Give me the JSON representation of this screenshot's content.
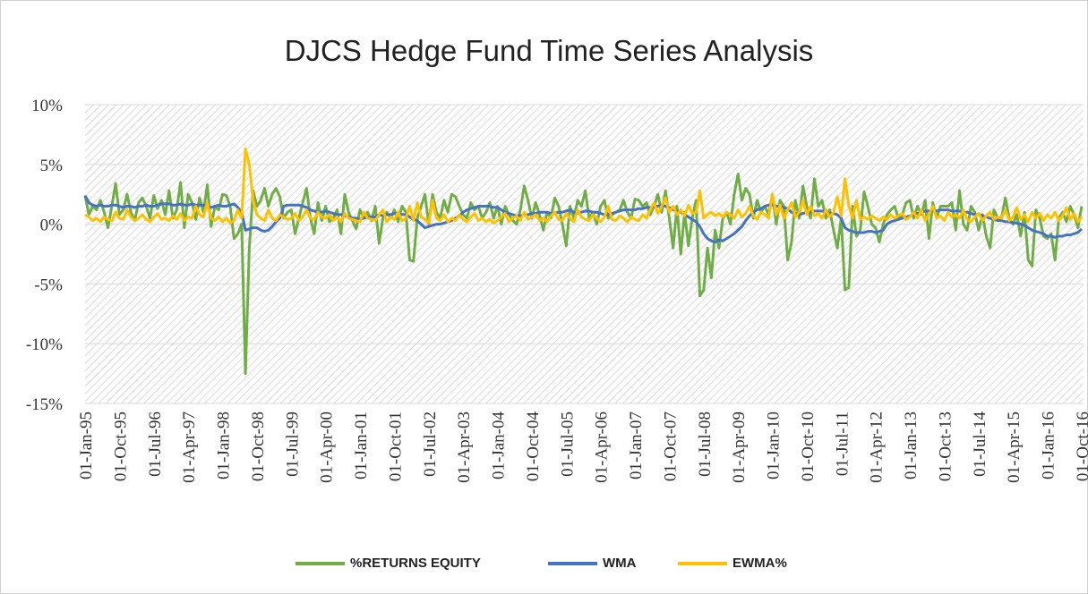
{
  "chart_data": {
    "type": "line",
    "title": "DJCS Hedge Fund Time Series Analysis",
    "categories": [
      "01-Jan-95",
      null,
      null,
      null,
      null,
      null,
      null,
      null,
      null,
      "01-Oct-95",
      null,
      null,
      null,
      null,
      null,
      null,
      null,
      null,
      "01-Jul-96",
      null,
      null,
      null,
      null,
      null,
      null,
      null,
      null,
      "01-Apr-97",
      null,
      null,
      null,
      null,
      null,
      null,
      null,
      null,
      "01-Jan-98",
      null,
      null,
      null,
      null,
      null,
      null,
      null,
      null,
      "01-Oct-98",
      null,
      null,
      null,
      null,
      null,
      null,
      null,
      null,
      "01-Jul-99",
      null,
      null,
      null,
      null,
      null,
      null,
      null,
      null,
      "01-Apr-00",
      null,
      null,
      null,
      null,
      null,
      null,
      null,
      null,
      "01-Jan-01",
      null,
      null,
      null,
      null,
      null,
      null,
      null,
      null,
      "01-Oct-01",
      null,
      null,
      null,
      null,
      null,
      null,
      null,
      null,
      "01-Jul-02",
      null,
      null,
      null,
      null,
      null,
      null,
      null,
      null,
      "01-Apr-03",
      null,
      null,
      null,
      null,
      null,
      null,
      null,
      null,
      "01-Jan-04",
      null,
      null,
      null,
      null,
      null,
      null,
      null,
      null,
      "01-Oct-04",
      null,
      null,
      null,
      null,
      null,
      null,
      null,
      null,
      "01-Jul-05",
      null,
      null,
      null,
      null,
      null,
      null,
      null,
      null,
      "01-Apr-06",
      null,
      null,
      null,
      null,
      null,
      null,
      null,
      null,
      "01-Jan-07",
      null,
      null,
      null,
      null,
      null,
      null,
      null,
      null,
      "01-Oct-07",
      null,
      null,
      null,
      null,
      null,
      null,
      null,
      null,
      "01-Jul-08",
      null,
      null,
      null,
      null,
      null,
      null,
      null,
      null,
      "01-Apr-09",
      null,
      null,
      null,
      null,
      null,
      null,
      null,
      null,
      "01-Jan-10",
      null,
      null,
      null,
      null,
      null,
      null,
      null,
      null,
      "01-Oct-10",
      null,
      null,
      null,
      null,
      null,
      null,
      null,
      null,
      "01-Jul-11",
      null,
      null,
      null,
      null,
      null,
      null,
      null,
      null,
      "01-Apr-12",
      null,
      null,
      null,
      null,
      null,
      null,
      null,
      null,
      "01-Jan-13",
      null,
      null,
      null,
      null,
      null,
      null,
      null,
      null,
      "01-Oct-13",
      null,
      null,
      null,
      null,
      null,
      null,
      null,
      null,
      "01-Jul-14",
      null,
      null,
      null,
      null,
      null,
      null,
      null,
      null,
      "01-Apr-15",
      null,
      null,
      null,
      null,
      null,
      null,
      null,
      null,
      "01-Jan-16",
      null,
      null,
      null,
      null,
      null,
      null,
      null,
      null,
      "01-Oct-16"
    ],
    "series": [
      {
        "name": "%RETURNS EQUITY",
        "color": "#70ad47",
        "values": [
          2.4,
          0.8,
          1.5,
          1.2,
          2.0,
          1.0,
          -0.3,
          1.5,
          3.4,
          0.8,
          1.2,
          2.5,
          1.0,
          0.3,
          1.8,
          2.2,
          1.5,
          0.5,
          2.4,
          1.3,
          2.0,
          0.8,
          2.8,
          0.5,
          1.2,
          3.5,
          -0.3,
          2.5,
          1.8,
          0.4,
          2.2,
          1.0,
          3.3,
          -0.2,
          1.5,
          1.2,
          2.5,
          2.4,
          1.5,
          -1.2,
          -0.8,
          0.0,
          -12.5,
          -2.0,
          2.8,
          1.5,
          2.0,
          3.0,
          1.5,
          2.5,
          3.0,
          2.3,
          0.5,
          1.0,
          1.2,
          -0.8,
          0.5,
          1.8,
          3.0,
          0.5,
          -0.8,
          1.8,
          0.3,
          1.5,
          0.2,
          0.5,
          1.2,
          -0.8,
          2.5,
          1.0,
          0.3,
          -0.4,
          1.2,
          0.5,
          1.0,
          0.3,
          1.5,
          -1.6,
          0.5,
          1.0,
          0.5,
          1.2,
          0.2,
          1.5,
          1.0,
          -3.0,
          -3.1,
          0.5,
          1.5,
          2.5,
          0.0,
          2.5,
          1.0,
          0.5,
          2.0,
          1.0,
          2.5,
          2.3,
          1.5,
          0.8,
          0.5,
          1.8,
          1.2,
          1.5,
          0.5,
          1.0,
          1.8,
          0.5,
          1.5,
          0.0,
          1.5,
          0.8,
          0.3,
          0.0,
          1.2,
          3.2,
          2.0,
          0.5,
          1.8,
          0.8,
          -0.5,
          1.0,
          0.5,
          2.2,
          1.5,
          0.0,
          -1.8,
          1.5,
          0.5,
          2.0,
          1.5,
          2.8,
          0.5,
          1.0,
          0.0,
          1.5,
          2.0,
          0.5,
          0.8,
          1.0,
          1.2,
          2.0,
          1.0,
          0.5,
          2.1,
          2.0,
          1.5,
          1.8,
          0.8,
          1.5,
          2.5,
          1.0,
          2.8,
          0.5,
          -2.0,
          1.5,
          -2.5,
          1.0,
          -1.8,
          0.5,
          2.0,
          -6.0,
          -5.5,
          -2.0,
          -4.5,
          -0.5,
          -2.0,
          0.5,
          1.0,
          0.0,
          2.5,
          4.2,
          2.0,
          3.0,
          2.5,
          0.5,
          2.0,
          1.0,
          1.5,
          0.8,
          2.5,
          0.0,
          2.0,
          1.5,
          -3.0,
          -1.5,
          2.0,
          0.5,
          3.2,
          1.5,
          0.5,
          3.8,
          1.5,
          2.0,
          0.5,
          1.2,
          -0.5,
          -2.0,
          0.5,
          -5.5,
          -5.3,
          1.5,
          -1.0,
          -0.5,
          2.7,
          1.5,
          0.0,
          -0.3,
          -1.5,
          0.0,
          0.8,
          1.2,
          1.5,
          0.5,
          0.8,
          1.8,
          2.0,
          0.5,
          1.5,
          0.8,
          2.0,
          -1.2,
          1.8,
          0.5,
          1.5,
          1.5,
          1.5,
          1.8,
          -0.5,
          2.8,
          0.0,
          -0.5,
          1.5,
          1.0,
          -0.5,
          0.8,
          -1.0,
          -2.0,
          1.2,
          0.5,
          0.5,
          2.2,
          0.5,
          0.0,
          0.8,
          -1.0,
          1.0,
          -3.0,
          -3.5,
          1.2,
          0.5,
          -1.0,
          -1.2,
          -0.8,
          -3.0,
          0.5,
          1.0,
          0.2,
          1.5,
          0.8,
          -0.3,
          1.5
        ]
      },
      {
        "name": "WMA",
        "color": "#4472c4",
        "values": [
          2.4,
          1.8,
          1.6,
          1.5,
          1.6,
          1.5,
          1.5,
          1.6,
          1.6,
          1.5,
          1.4,
          1.5,
          1.5,
          1.4,
          1.5,
          1.5,
          1.6,
          1.5,
          1.5,
          1.6,
          1.7,
          1.7,
          1.7,
          1.6,
          1.6,
          1.7,
          1.6,
          1.6,
          1.7,
          1.6,
          1.6,
          1.6,
          1.5,
          1.4,
          1.5,
          1.6,
          1.5,
          1.5,
          1.6,
          1.7,
          1.4,
          1.0,
          -0.5,
          -0.4,
          -0.3,
          -0.3,
          -0.5,
          -0.6,
          -0.5,
          -0.2,
          0.2,
          0.5,
          1.5,
          1.6,
          1.6,
          1.6,
          1.6,
          1.5,
          1.4,
          1.2,
          1.1,
          1.0,
          1.0,
          1.1,
          1.0,
          0.9,
          0.8,
          0.8,
          0.7,
          0.6,
          0.5,
          0.5,
          0.4,
          0.5,
          0.6,
          0.6,
          0.6,
          0.8,
          0.7,
          0.8,
          0.8,
          0.9,
          0.9,
          0.8,
          0.8,
          0.6,
          0.4,
          0.3,
          0.0,
          -0.3,
          -0.2,
          -0.1,
          0.0,
          0.0,
          0.1,
          0.2,
          0.3,
          0.5,
          0.7,
          1.0,
          1.2,
          1.3,
          1.4,
          1.5,
          1.5,
          1.5,
          1.5,
          1.4,
          1.4,
          1.2,
          1.0,
          0.9,
          0.8,
          0.7,
          0.7,
          0.8,
          0.8,
          0.9,
          0.9,
          1.0,
          1.0,
          1.0,
          0.9,
          0.9,
          1.0,
          1.0,
          1.1,
          1.2,
          1.0,
          0.9,
          1.0,
          1.1,
          1.1,
          1.0,
          1.0,
          0.9,
          0.8,
          0.8,
          0.9,
          1.0,
          1.1,
          1.2,
          1.2,
          1.2,
          1.2,
          1.3,
          1.3,
          1.4,
          1.4,
          1.5,
          1.5,
          1.6,
          1.5,
          1.4,
          1.2,
          1.1,
          1.0,
          0.8,
          0.6,
          0.4,
          0.2,
          -0.2,
          -0.8,
          -1.2,
          -1.4,
          -1.5,
          -1.3,
          -1.4,
          -1.2,
          -1.0,
          -0.8,
          -0.5,
          -0.2,
          0.3,
          0.7,
          1.0,
          1.2,
          1.3,
          1.5,
          1.6,
          1.6,
          1.5,
          1.5,
          1.4,
          1.3,
          1.0,
          0.9,
          0.8,
          0.9,
          1.0,
          1.0,
          1.1,
          1.1,
          1.1,
          1.0,
          0.9,
          0.9,
          0.8,
          0.5,
          -0.3,
          -0.5,
          -0.6,
          -0.7,
          -0.7,
          -0.7,
          -0.6,
          -0.6,
          -0.7,
          -0.6,
          -0.5,
          0.0,
          0.2,
          0.3,
          0.4,
          0.5,
          0.6,
          0.7,
          0.8,
          0.9,
          1.0,
          1.1,
          1.1,
          1.1,
          1.1,
          1.2,
          1.2,
          1.2,
          1.1,
          1.1,
          1.1,
          1.0,
          1.0,
          0.9,
          0.8,
          0.8,
          0.7,
          0.6,
          0.5,
          0.4,
          0.3,
          0.3,
          0.2,
          0.2,
          0.1,
          0.1,
          0.0,
          -0.1,
          -0.3,
          -0.5,
          -0.6,
          -0.7,
          -0.8,
          -1.0,
          -1.0,
          -1.1,
          -1.0,
          -1.0,
          -0.9,
          -0.9,
          -0.8,
          -0.7,
          -0.4
        ]
      },
      {
        "name": "EWMA%",
        "color": "#ffc000",
        "values": [
          0.8,
          0.6,
          0.3,
          0.5,
          0.2,
          0.6,
          0.4,
          0.3,
          1.0,
          0.5,
          0.4,
          1.2,
          0.6,
          0.3,
          0.5,
          0.8,
          0.4,
          0.2,
          0.6,
          0.9,
          0.4,
          0.5,
          0.3,
          0.7,
          0.4,
          0.9,
          0.3,
          0.6,
          0.5,
          1.5,
          0.8,
          0.6,
          1.8,
          0.5,
          0.3,
          0.6,
          0.2,
          0.5,
          0.1,
          0.3,
          1.2,
          0.5,
          6.3,
          5.0,
          2.0,
          0.8,
          0.5,
          0.3,
          1.2,
          0.5,
          0.3,
          0.8,
          0.6,
          0.4,
          0.5,
          0.9,
          0.3,
          0.6,
          1.2,
          0.5,
          0.4,
          1.0,
          0.6,
          0.5,
          0.8,
          0.3,
          0.6,
          0.2,
          0.9,
          0.5,
          0.4,
          0.3,
          0.2,
          1.0,
          0.5,
          0.4,
          0.3,
          0.8,
          1.2,
          0.2,
          0.6,
          0.4,
          1.0,
          0.3,
          0.5,
          1.5,
          0.3,
          1.8,
          0.6,
          0.4,
          0.1,
          2.0,
          0.5,
          0.3,
          0.8,
          0.2,
          0.5,
          0.3,
          0.8,
          0.4,
          0.2,
          0.6,
          0.9,
          0.3,
          0.5,
          0.2,
          0.4,
          0.1,
          0.3,
          0.6,
          0.9,
          0.2,
          0.5,
          0.7,
          0.3,
          1.0,
          0.4,
          0.6,
          0.8,
          0.3,
          0.5,
          0.2,
          0.7,
          1.0,
          0.4,
          0.3,
          0.9,
          0.5,
          0.2,
          1.2,
          0.6,
          0.4,
          0.3,
          0.8,
          0.5,
          0.2,
          0.6,
          1.5,
          0.4,
          0.3,
          0.7,
          0.5,
          0.2,
          0.6,
          0.4,
          0.3,
          0.8,
          0.5,
          1.2,
          1.8,
          0.9,
          1.5,
          2.2,
          1.0,
          1.5,
          0.8,
          1.2,
          0.7,
          1.6,
          0.9,
          1.0,
          2.8,
          0.5,
          0.8,
          1.0,
          0.7,
          0.9,
          0.6,
          1.0,
          0.8,
          0.5,
          1.2,
          0.6,
          0.9,
          1.5,
          0.7,
          0.4,
          1.0,
          0.8,
          0.5,
          2.5,
          0.8,
          1.6,
          0.5,
          1.2,
          1.8,
          0.6,
          1.0,
          2.0,
          0.8,
          1.5,
          0.7,
          0.9,
          0.5,
          1.2,
          0.6,
          1.0,
          2.3,
          0.7,
          3.8,
          1.5,
          0.5,
          2.0,
          0.4,
          0.6,
          0.4,
          0.7,
          0.5,
          0.3,
          0.6,
          0.4,
          0.8,
          0.5,
          0.7,
          0.9,
          0.4,
          0.6,
          1.0,
          0.5,
          1.2,
          0.3,
          0.8,
          1.5,
          0.5,
          0.7,
          0.3,
          1.0,
          0.6,
          0.8,
          0.5,
          1.2,
          0.4,
          0.2,
          0.6,
          0.9,
          0.3,
          0.7,
          1.0,
          0.4,
          0.6,
          0.5,
          1.2,
          0.3,
          0.6,
          1.4,
          0.4,
          0.8,
          0.2,
          1.0,
          0.5,
          0.9,
          0.3,
          0.8,
          0.5,
          1.0,
          0.3,
          0.7,
          1.4,
          0.4,
          0.9,
          0.2,
          0.6
        ]
      }
    ],
    "ylim": [
      -15,
      10
    ],
    "yticks": [
      {
        "value": -15,
        "label": "-15%"
      },
      {
        "value": -10,
        "label": "-10%"
      },
      {
        "value": -5,
        "label": "-5%"
      },
      {
        "value": 0,
        "label": "0%"
      },
      {
        "value": 5,
        "label": "5%"
      },
      {
        "value": 10,
        "label": "10%"
      }
    ],
    "grid": true,
    "legend": "bottom"
  }
}
